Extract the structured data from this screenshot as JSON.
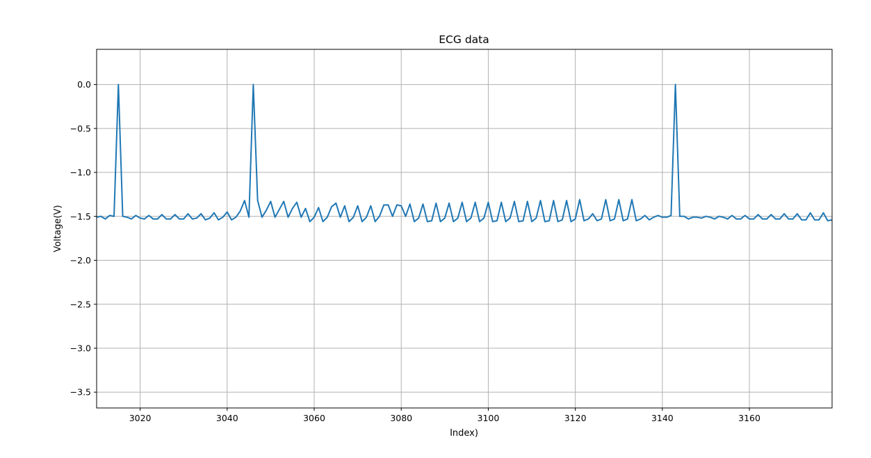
{
  "chart_data": {
    "type": "line",
    "title": "ECG data",
    "xlabel": "Index)",
    "ylabel": "Voltage(V)",
    "xlim": [
      3010,
      3179
    ],
    "ylim": [
      -3.68,
      0.4
    ],
    "x_ticks": [
      3020,
      3040,
      3060,
      3080,
      3100,
      3120,
      3140,
      3160
    ],
    "x_tick_labels": [
      "3020",
      "3040",
      "3060",
      "3080",
      "3100",
      "3120",
      "3140",
      "3160"
    ],
    "y_ticks": [
      0.0,
      -0.5,
      -1.0,
      -1.5,
      -2.0,
      -2.5,
      -3.0,
      -3.5
    ],
    "y_tick_labels": [
      "0.0",
      "−0.5",
      "−1.0",
      "−1.5",
      "−2.0",
      "−2.5",
      "−3.0",
      "−3.5"
    ],
    "grid": true,
    "series": [
      {
        "color": "#1f77b4",
        "x_start": 3010,
        "x_step": 1,
        "values": [
          -1.51,
          -1.5,
          -1.53,
          -1.49,
          -1.5,
          0.0,
          -1.5,
          -1.51,
          -1.53,
          -1.49,
          -1.52,
          -1.53,
          -1.49,
          -1.53,
          -1.53,
          -1.48,
          -1.53,
          -1.53,
          -1.48,
          -1.53,
          -1.53,
          -1.47,
          -1.53,
          -1.52,
          -1.47,
          -1.54,
          -1.52,
          -1.46,
          -1.54,
          -1.51,
          -1.45,
          -1.54,
          -1.51,
          -1.44,
          -1.32,
          -1.51,
          0.0,
          -1.32,
          -1.51,
          -1.43,
          -1.33,
          -1.51,
          -1.42,
          -1.33,
          -1.51,
          -1.41,
          -1.34,
          -1.51,
          -1.41,
          -1.56,
          -1.51,
          -1.4,
          -1.56,
          -1.51,
          -1.39,
          -1.35,
          -1.51,
          -1.38,
          -1.56,
          -1.51,
          -1.38,
          -1.56,
          -1.51,
          -1.38,
          -1.56,
          -1.5,
          -1.37,
          -1.37,
          -1.5,
          -1.37,
          -1.38,
          -1.5,
          -1.36,
          -1.56,
          -1.52,
          -1.36,
          -1.56,
          -1.55,
          -1.35,
          -1.56,
          -1.52,
          -1.35,
          -1.56,
          -1.52,
          -1.34,
          -1.56,
          -1.52,
          -1.34,
          -1.56,
          -1.52,
          -1.34,
          -1.56,
          -1.55,
          -1.34,
          -1.56,
          -1.52,
          -1.33,
          -1.56,
          -1.55,
          -1.33,
          -1.56,
          -1.52,
          -1.32,
          -1.56,
          -1.55,
          -1.32,
          -1.56,
          -1.54,
          -1.32,
          -1.56,
          -1.53,
          -1.31,
          -1.55,
          -1.53,
          -1.47,
          -1.55,
          -1.53,
          -1.31,
          -1.55,
          -1.53,
          -1.31,
          -1.55,
          -1.53,
          -1.31,
          -1.55,
          -1.53,
          -1.49,
          -1.54,
          -1.51,
          -1.49,
          -1.51,
          -1.51,
          -1.49,
          0.0,
          -1.5,
          -1.5,
          -1.53,
          -1.51,
          -1.51,
          -1.52,
          -1.5,
          -1.51,
          -1.53,
          -1.5,
          -1.51,
          -1.53,
          -1.49,
          -1.53,
          -1.53,
          -1.49,
          -1.53,
          -1.53,
          -1.48,
          -1.53,
          -1.53,
          -1.48,
          -1.53,
          -1.53,
          -1.47,
          -1.53,
          -1.53,
          -1.47,
          -1.54,
          -1.54,
          -1.46,
          -1.54,
          -1.54,
          -1.46,
          -1.55,
          -1.54,
          -1.32,
          -1.55,
          -1.54,
          -1.32,
          -1.53,
          -1.55
        ]
      }
    ]
  }
}
